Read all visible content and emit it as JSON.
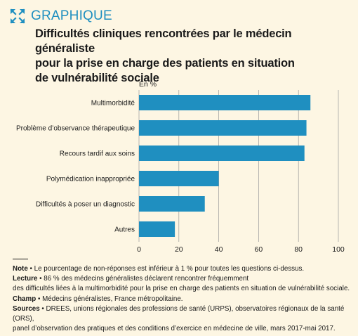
{
  "header": {
    "tag": "GRAPHIQUE",
    "title_lines": [
      "Difficultés cliniques rencontrées par le médecin généraliste",
      "pour la prise en charge des patients en situation",
      "de vulnérabilité sociale"
    ],
    "icon": "expand-arrows-icon"
  },
  "chart_data": {
    "type": "bar",
    "orientation": "horizontal",
    "unit_label": "En %",
    "categories": [
      "Multimorbidité",
      "Problème d’observance thérapeutique",
      "Recours tardif aux soins",
      "Polymédication inappropriée",
      "Difficultés à poser un diagnostic",
      "Autres"
    ],
    "values": [
      86,
      84,
      83,
      40,
      33,
      18
    ],
    "xlim": [
      0,
      100
    ],
    "xticks": [
      "0",
      "20",
      "40",
      "60",
      "80",
      "100"
    ],
    "grid": "vertical",
    "bar_color": "#1f8fc0"
  },
  "notes": [
    {
      "label": "Note",
      "text": " • Le pourcentage de non-réponses est inférieur à 1 % pour toutes les questions ci-dessus."
    },
    {
      "label": "Lecture",
      "text": " • 86 % des médecins généralistes déclarent rencontrer fréquemment"
    },
    {
      "label": "",
      "text": "des difficultés liées à la multimorbidité pour la prise en charge des patients en situation de vulnérabilité sociale."
    },
    {
      "label": "Champ",
      "text": " • Médecins généralistes, France métropolitaine."
    },
    {
      "label": "Sources",
      "text": " • DREES, unions régionales des professions de santé (URPS), observatoires régionaux de la santé (ORS),"
    },
    {
      "label": "",
      "text": "panel d’observation des pratiques et des conditions d’exercice en médecine de ville, mars 2017-mai 2017."
    }
  ]
}
